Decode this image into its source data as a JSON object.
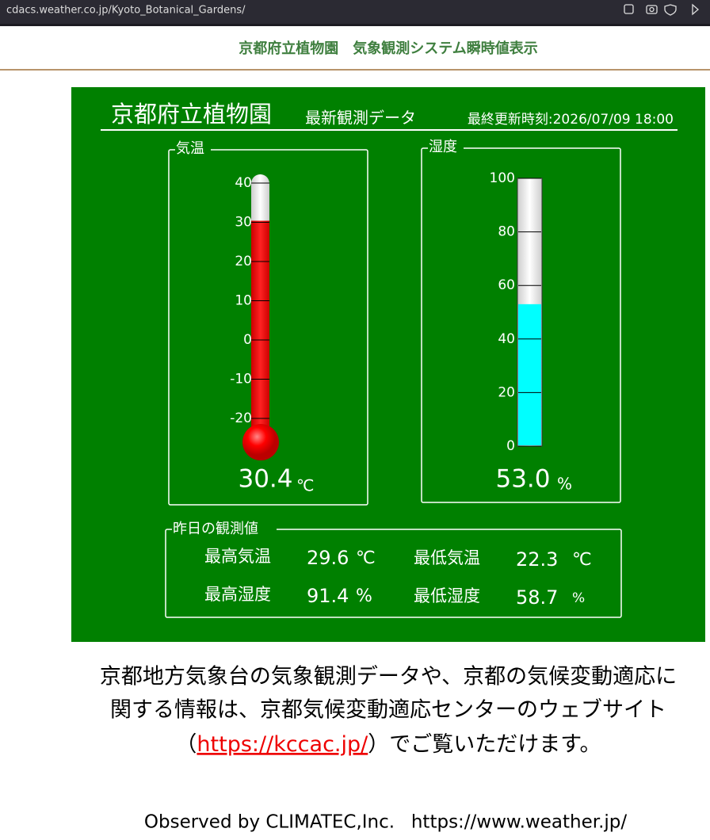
{
  "browser": {
    "url": "cdacs.weather.co.jp/Kyoto_Botanical_Gardens/"
  },
  "header": {
    "title": "京都府立植物園　気象観測システム瞬時値表示"
  },
  "panel": {
    "place": "京都府立植物園",
    "subtitle": "最新観測データ",
    "updated": "最終更新時刻:2026/07/09 18:00",
    "temperature": {
      "label": "気温",
      "ylim": [
        -20,
        40
      ],
      "yticks": [
        40,
        30,
        20,
        10,
        0,
        -10,
        -20
      ],
      "value": 30.4,
      "unit": "℃"
    },
    "humidity": {
      "label": "湿度",
      "ylim": [
        0,
        100
      ],
      "yticks": [
        100,
        80,
        60,
        40,
        20,
        0
      ],
      "value": 53.0,
      "value_label": "53.0",
      "unit": "%"
    },
    "yesterday": {
      "label": "昨日の観測値",
      "max_temp": {
        "label": "最高気温",
        "value": 29.6,
        "unit": "℃"
      },
      "min_temp": {
        "label": "最低気温",
        "value": 22.3,
        "unit": "℃"
      },
      "max_humidity": {
        "label": "最高湿度",
        "value": 91.4,
        "unit": "%"
      },
      "min_humidity": {
        "label": "最低湿度",
        "value": 58.7,
        "unit": "%"
      }
    }
  },
  "paragraph": {
    "line1": "京都地方気象台の気象観測データや、京都の気候変動適応に",
    "line2": "関する情報は、京都気候変動適応センターのウェブサイト",
    "open": "（",
    "link": "https://kccac.jp/",
    "close": "）でご覧いただけます。"
  },
  "footer": {
    "observed": "Observed by CLIMATEC,Inc.",
    "site": "https://www.weather.jp/"
  }
}
